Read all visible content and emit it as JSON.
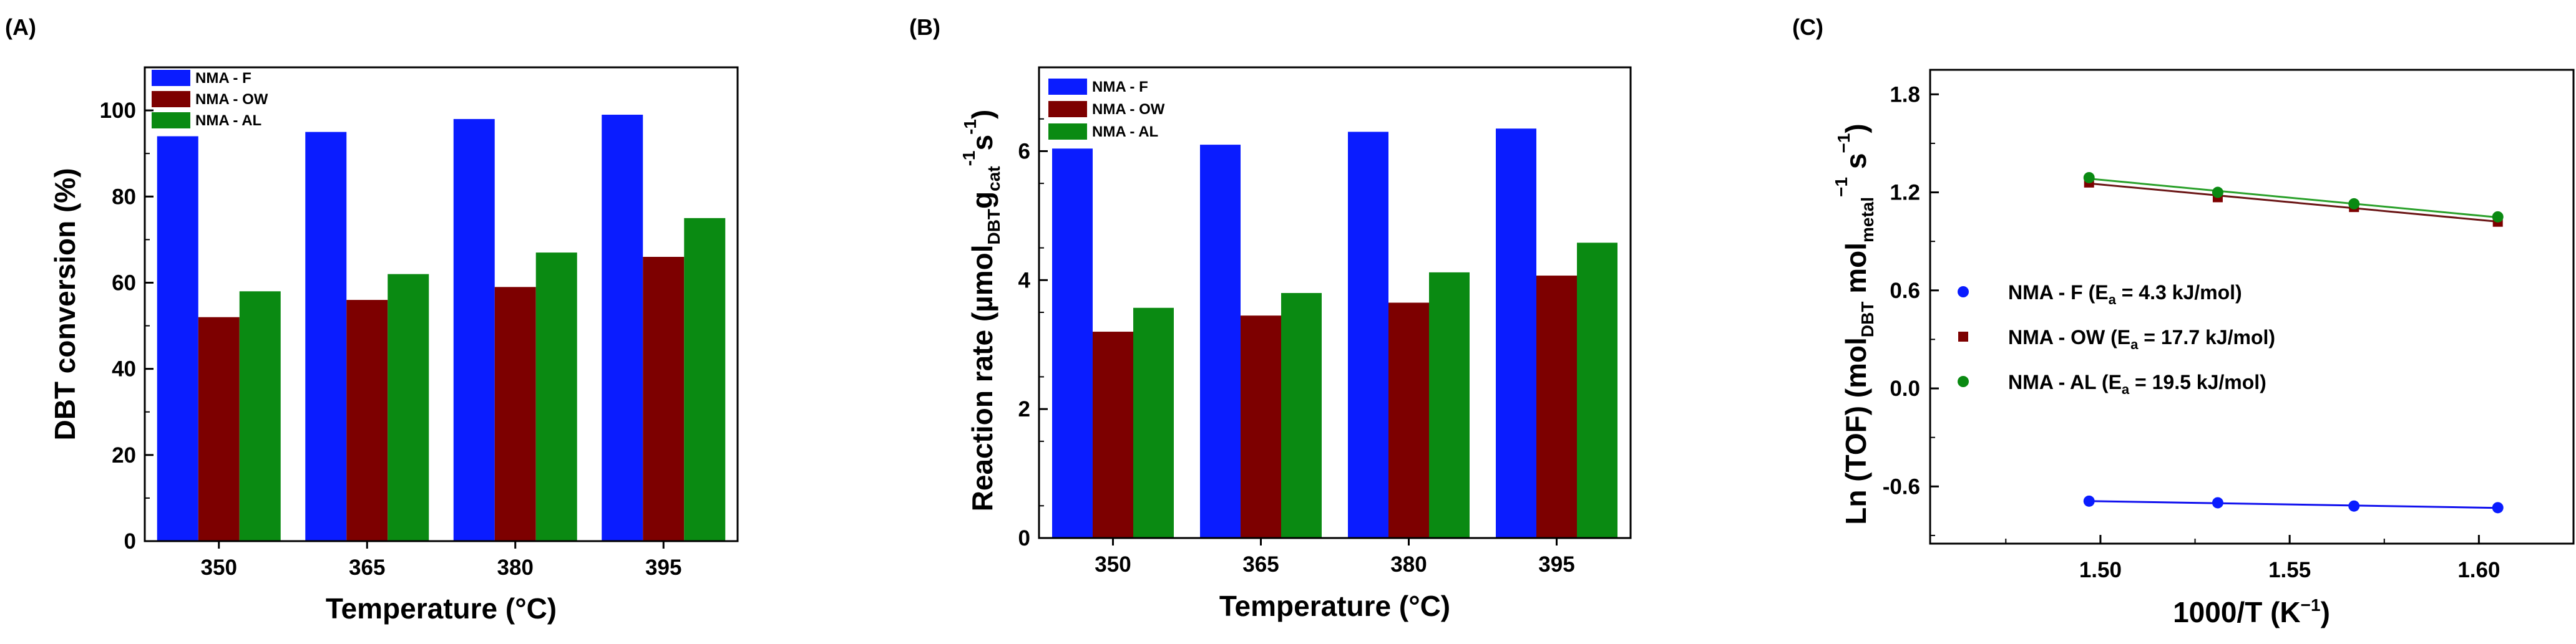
{
  "panels": {
    "a": "(A)",
    "b": "(B)",
    "c": "(C)"
  },
  "colors": {
    "f": "#0a1cff",
    "ow": "#7d0000",
    "al": "#0a8a12",
    "f_line": "#1010ee",
    "ow_line": "#6a1515",
    "al_line": "#2aa02a"
  },
  "chart_data": [
    {
      "type": "bar",
      "title": "",
      "xlabel": "Temperature (°C)",
      "ylabel": "DBT conversion (%)",
      "categories": [
        "350",
        "365",
        "380",
        "395"
      ],
      "ylim": [
        0,
        110
      ],
      "yticks": [
        "0",
        "20",
        "40",
        "60",
        "80",
        "100"
      ],
      "legend": "top-left",
      "series": [
        {
          "name": "NMA - F",
          "values": [
            94,
            95,
            98,
            99
          ]
        },
        {
          "name": "NMA - OW",
          "values": [
            52,
            56,
            59,
            66
          ]
        },
        {
          "name": "NMA - AL",
          "values": [
            58,
            62,
            67,
            75
          ]
        }
      ]
    },
    {
      "type": "bar",
      "title": "",
      "xlabel": "Temperature (°C)",
      "ylabel": "Reaction rate (µmolDBTgcat-1s-1)",
      "ylabel_parts": {
        "main": "Reaction rate (µmol",
        "sub1": "DBT",
        "g": "g",
        "sub2": "cat",
        "sup1": "-1",
        "s": "s",
        "sup2": "-1",
        "close": ")"
      },
      "categories": [
        "350",
        "365",
        "380",
        "395"
      ],
      "ylim": [
        0,
        7.3
      ],
      "yticks": [
        "0",
        "2",
        "4",
        "6"
      ],
      "legend": "top-left",
      "series": [
        {
          "name": "NMA - F",
          "values": [
            6.04,
            6.1,
            6.3,
            6.35
          ]
        },
        {
          "name": "NMA - OW",
          "values": [
            3.2,
            3.45,
            3.65,
            4.07
          ]
        },
        {
          "name": "NMA - AL",
          "values": [
            3.57,
            3.8,
            4.12,
            4.58
          ]
        }
      ]
    },
    {
      "type": "scatter",
      "title": "",
      "xlabel": "1000/T (K−1)",
      "xlabel_parts": {
        "main": "1000/T (K",
        "sup": "−1",
        "close": ")"
      },
      "ylabel": "Ln (TOF) (molDBT molmetal−1 s−1)",
      "ylabel_parts": {
        "a": "Ln (TOF) (mol",
        "sub1": "DBT",
        "b": " mol",
        "sub2": "metal",
        "sup1": "−1",
        "c": " s",
        "sup2": "−1",
        "d": ")"
      },
      "xlim": [
        1.455,
        1.625
      ],
      "ylim": [
        -0.95,
        1.95
      ],
      "xticks": [
        "1.50",
        "1.55",
        "1.60"
      ],
      "yticks": [
        "-0.6",
        "0.0",
        "0.6",
        "1.2",
        "1.8"
      ],
      "legend": "center-left",
      "series": [
        {
          "name": "NMA - F",
          "ea_label": "NMA - F (Ea = 4.3 kJ/mol)",
          "ea_parts": {
            "pre": "NMA - F (E",
            "sub": "a",
            "post": " = 4.3 kJ/mol)"
          },
          "marker": "circle",
          "x": [
            1.497,
            1.531,
            1.567,
            1.605
          ],
          "y": [
            -0.69,
            -0.7,
            -0.72,
            -0.73
          ]
        },
        {
          "name": "NMA - OW",
          "ea_label": "NMA - OW (Ea = 17.7 kJ/mol)",
          "ea_parts": {
            "pre": "NMA - OW (E",
            "sub": "a",
            "post": " = 17.7 kJ/mol)"
          },
          "marker": "square",
          "x": [
            1.497,
            1.531,
            1.567,
            1.605
          ],
          "y": [
            1.26,
            1.17,
            1.11,
            1.02
          ]
        },
        {
          "name": "NMA - AL",
          "ea_label": "NMA - AL (Ea = 19.5 kJ/mol)",
          "ea_parts": {
            "pre": "NMA - AL (E",
            "sub": "a",
            "post": " = 19.5 kJ/mol)"
          },
          "marker": "circle",
          "x": [
            1.497,
            1.531,
            1.567,
            1.605
          ],
          "y": [
            1.29,
            1.2,
            1.13,
            1.05
          ]
        }
      ]
    }
  ]
}
